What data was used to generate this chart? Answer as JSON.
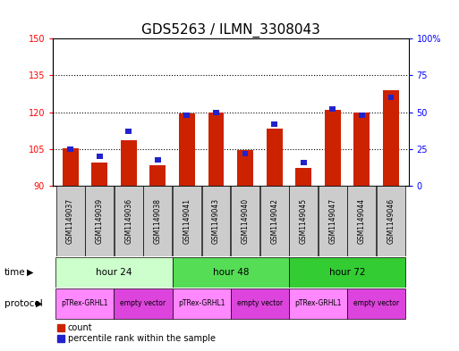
{
  "title": "GDS5263 / ILMN_3308043",
  "samples": [
    "GSM1149037",
    "GSM1149039",
    "GSM1149036",
    "GSM1149038",
    "GSM1149041",
    "GSM1149043",
    "GSM1149040",
    "GSM1149042",
    "GSM1149045",
    "GSM1149047",
    "GSM1149044",
    "GSM1149046"
  ],
  "red_values": [
    105.5,
    99.5,
    108.5,
    98.5,
    119.5,
    120.0,
    104.5,
    113.5,
    97.5,
    121.0,
    120.0,
    129.0
  ],
  "blue_values_pct": [
    25,
    20,
    37,
    18,
    48,
    50,
    22,
    42,
    16,
    52,
    48,
    60
  ],
  "ylim_left": [
    90,
    150
  ],
  "ylim_right": [
    0,
    100
  ],
  "yticks_left": [
    90,
    105,
    120,
    135,
    150
  ],
  "yticks_right": [
    0,
    25,
    50,
    75,
    100
  ],
  "ytick_labels_right": [
    "0",
    "25",
    "50",
    "75",
    "100%"
  ],
  "time_groups": [
    {
      "label": "hour 24",
      "start": 0,
      "end": 4,
      "color": "#ccffcc"
    },
    {
      "label": "hour 48",
      "start": 4,
      "end": 8,
      "color": "#55dd55"
    },
    {
      "label": "hour 72",
      "start": 8,
      "end": 12,
      "color": "#33cc33"
    }
  ],
  "protocol_groups": [
    {
      "label": "pTRex-GRHL1",
      "start": 0,
      "end": 2,
      "color": "#ff88ff"
    },
    {
      "label": "empty vector",
      "start": 2,
      "end": 4,
      "color": "#dd44dd"
    },
    {
      "label": "pTRex-GRHL1",
      "start": 4,
      "end": 6,
      "color": "#ff88ff"
    },
    {
      "label": "empty vector",
      "start": 6,
      "end": 8,
      "color": "#dd44dd"
    },
    {
      "label": "pTRex-GRHL1",
      "start": 8,
      "end": 10,
      "color": "#ff88ff"
    },
    {
      "label": "empty vector",
      "start": 10,
      "end": 12,
      "color": "#dd44dd"
    }
  ],
  "bar_color_red": "#cc2200",
  "bar_color_blue": "#2222cc",
  "bar_bottom": 90,
  "bar_width": 0.55,
  "background_color": "#ffffff",
  "plot_bg_color": "#ffffff",
  "title_fontsize": 11,
  "tick_fontsize": 7,
  "sample_bg_color": "#cccccc",
  "legend_labels": [
    "count",
    "percentile rank within the sample"
  ]
}
